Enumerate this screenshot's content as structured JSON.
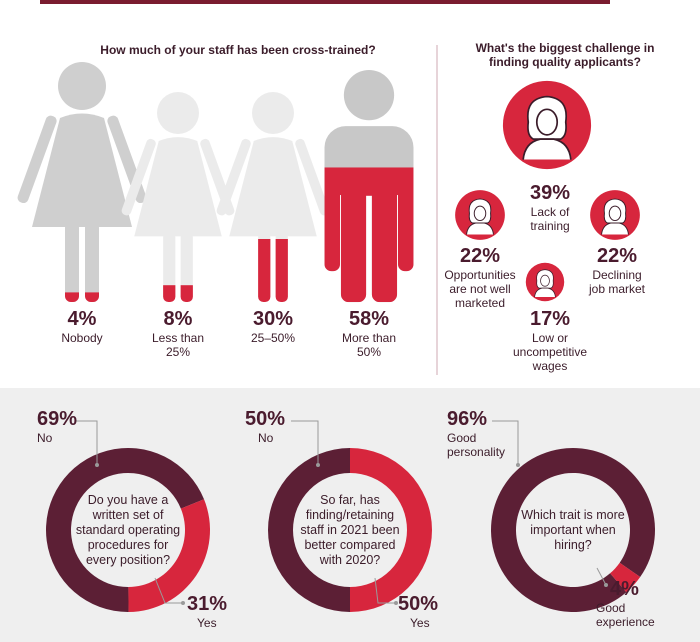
{
  "chart_data": [
    {
      "type": "pictograph",
      "title": "How much of your staff has been cross-trained?",
      "categories": [
        "Nobody",
        "Less than 25%",
        "25–50%",
        "More than 50%"
      ],
      "values": [
        4,
        8,
        30,
        58
      ],
      "value_labels": [
        "4%",
        "8%",
        "30%",
        "58%"
      ],
      "color": "#d7263d"
    },
    {
      "type": "bubble",
      "title": "What's the biggest challenge in finding quality applicants?",
      "categories": [
        "Lack of training",
        "Opportunities are not well marketed",
        "Declining job market",
        "Low or uncompetitive wages"
      ],
      "values": [
        39,
        22,
        22,
        17
      ],
      "value_labels": [
        "39%",
        "22%",
        "22%",
        "17%"
      ],
      "color": "#d7263d"
    },
    {
      "type": "donut",
      "title": "Do you have a written set of standard operating procedures for every position?",
      "categories": [
        "No",
        "Yes"
      ],
      "values": [
        69,
        31
      ],
      "value_labels": [
        "69%",
        "31%"
      ],
      "colors": [
        "#5c1f35",
        "#d7263d"
      ]
    },
    {
      "type": "donut",
      "title": "So far, has finding/retaining staff in 2021 been better compared with 2020?",
      "categories": [
        "No",
        "Yes"
      ],
      "values": [
        50,
        50
      ],
      "value_labels": [
        "50%",
        "50%"
      ],
      "colors": [
        "#5c1f35",
        "#d7263d"
      ]
    },
    {
      "type": "donut",
      "title": "Which trait is more important when hiring?",
      "categories": [
        "Good personality",
        "Good experience"
      ],
      "values": [
        96,
        4
      ],
      "value_labels": [
        "96%",
        "4%"
      ],
      "colors": [
        "#5c1f35",
        "#d7263d"
      ]
    }
  ]
}
